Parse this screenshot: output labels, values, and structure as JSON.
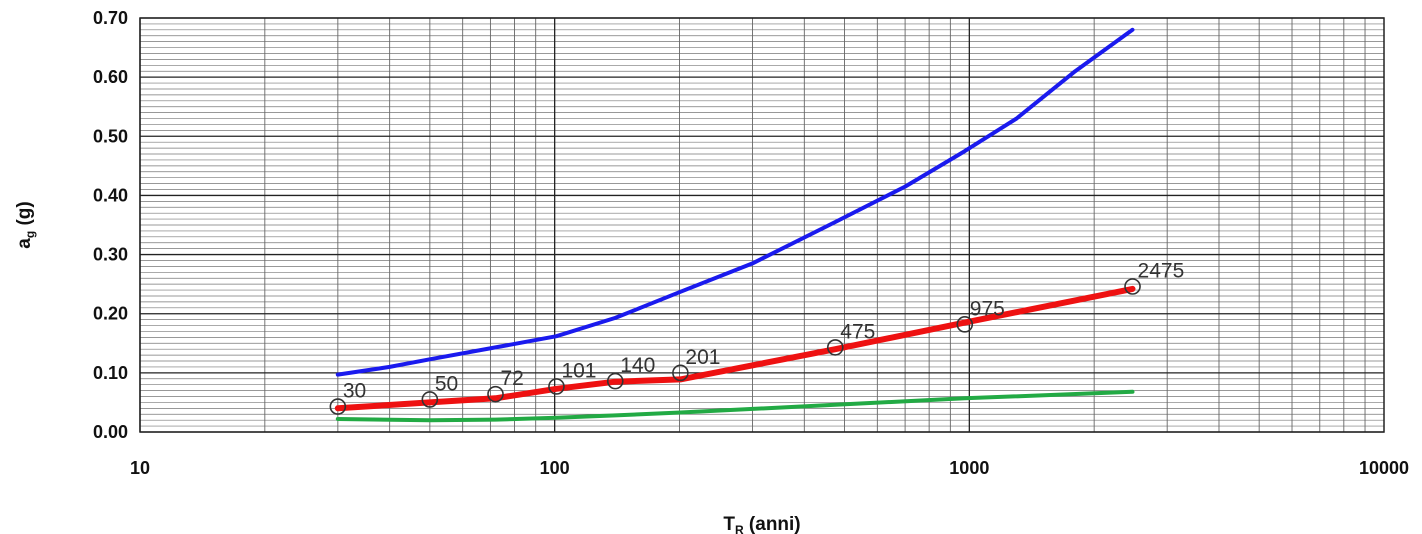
{
  "chart_data": {
    "type": "line",
    "xscale": "log",
    "xlim": [
      10,
      10000
    ],
    "ylim": [
      0,
      0.7
    ],
    "grid": true,
    "xlabel": {
      "main": "T",
      "sub": "R",
      "rest": " (anni)"
    },
    "ylabel": {
      "main": "a",
      "sub": "g",
      "rest": " (g)"
    },
    "x_tick_labels": [
      "10",
      "100",
      "1000",
      "10000"
    ],
    "y_tick_labels": [
      "0.00",
      "0.10",
      "0.20",
      "0.30",
      "0.40",
      "0.50",
      "0.60",
      "0.70"
    ],
    "series": [
      {
        "color": "#1a1aee",
        "x": [
          30,
          40,
          50,
          72,
          101,
          140,
          201,
          300,
          475,
          700,
          975,
          1300,
          1800,
          2475
        ],
        "y": [
          0.097,
          0.11,
          0.123,
          0.143,
          0.162,
          0.193,
          0.237,
          0.285,
          0.355,
          0.415,
          0.475,
          0.53,
          0.61,
          0.68
        ]
      },
      {
        "color": "#ee1111",
        "x": [
          30,
          50,
          72,
          101,
          140,
          201,
          475,
          975,
          2475
        ],
        "y": [
          0.04,
          0.05,
          0.057,
          0.073,
          0.085,
          0.089,
          0.14,
          0.185,
          0.242
        ]
      },
      {
        "color": "#22aa44",
        "x": [
          30,
          50,
          72,
          101,
          140,
          201,
          475,
          975,
          2475
        ],
        "y": [
          0.022,
          0.02,
          0.021,
          0.024,
          0.028,
          0.033,
          0.046,
          0.057,
          0.068
        ]
      }
    ],
    "points": [
      {
        "x": 30,
        "y": 0.043,
        "label": "30"
      },
      {
        "x": 50,
        "y": 0.055,
        "label": "50"
      },
      {
        "x": 72,
        "y": 0.064,
        "label": "72"
      },
      {
        "x": 101,
        "y": 0.077,
        "label": "101"
      },
      {
        "x": 140,
        "y": 0.086,
        "label": "140"
      },
      {
        "x": 201,
        "y": 0.1,
        "label": "201"
      },
      {
        "x": 475,
        "y": 0.143,
        "label": "475"
      },
      {
        "x": 975,
        "y": 0.182,
        "label": "975"
      },
      {
        "x": 2475,
        "y": 0.246,
        "label": "2475"
      }
    ]
  }
}
